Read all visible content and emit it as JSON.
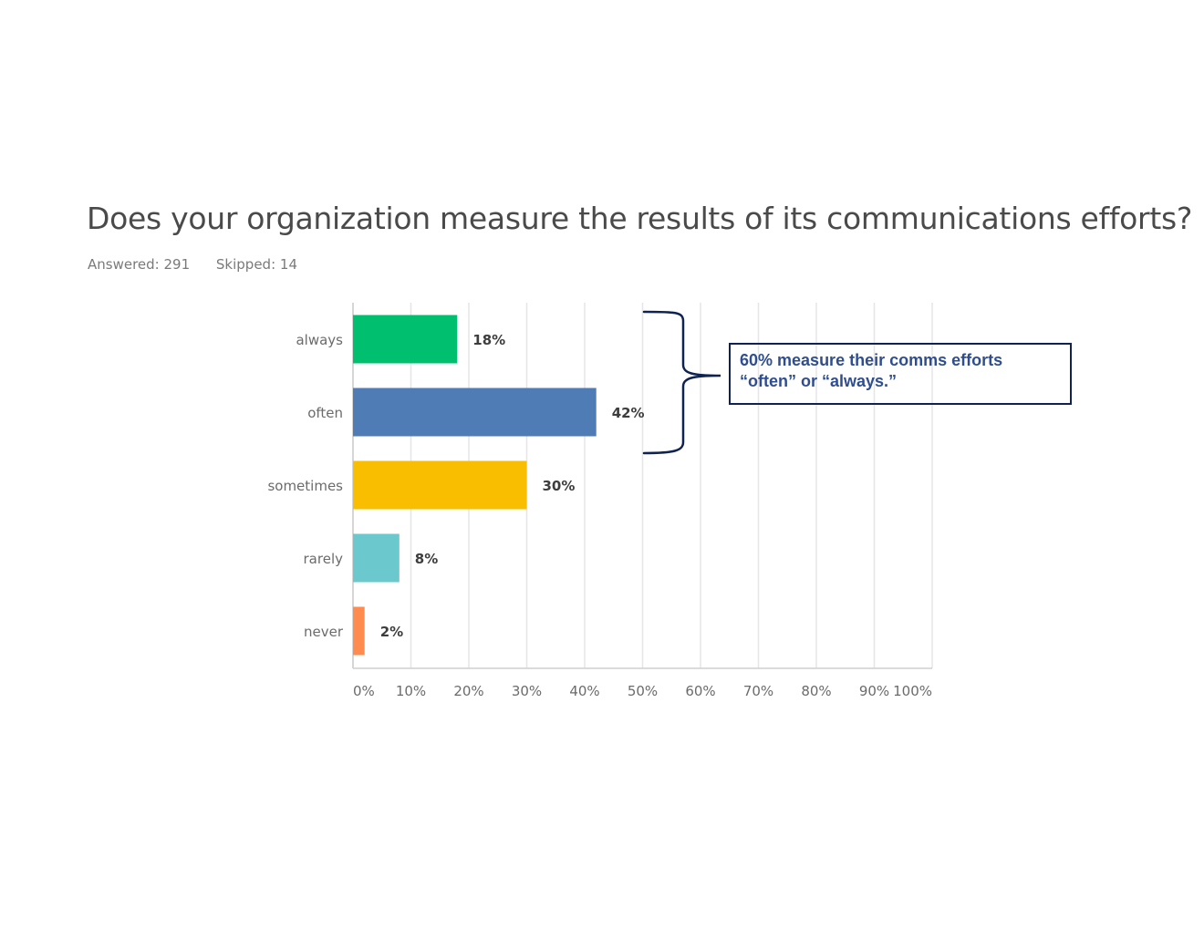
{
  "question": {
    "title": "Does your organization measure the results of its communications efforts?",
    "answered": "Answered: 291",
    "skipped": "Skipped: 14"
  },
  "callout": {
    "line1": "60% measure their comms efforts",
    "line2": "“often” or “always.”"
  },
  "chart_data": {
    "type": "bar",
    "orientation": "horizontal",
    "categories": [
      "always",
      "often",
      "sometimes",
      "rarely",
      "never"
    ],
    "values": [
      18,
      42,
      30,
      8,
      2
    ],
    "data_labels": [
      "18%",
      "42%",
      "30%",
      "8%",
      "2%"
    ],
    "colors": [
      "#00bf6f",
      "#507cb6",
      "#f9be00",
      "#6bc8cd",
      "#ff8b4f"
    ],
    "xlim": [
      0,
      100
    ],
    "xticks": [
      0,
      10,
      20,
      30,
      40,
      50,
      60,
      70,
      80,
      90,
      100
    ],
    "xtick_labels": [
      "0%",
      "10%",
      "20%",
      "30%",
      "40%",
      "50%",
      "60%",
      "70%",
      "80%",
      "90%",
      "100%"
    ],
    "grid": true,
    "legend": "none",
    "annotation": {
      "bracket_spans": [
        "always",
        "often"
      ]
    }
  }
}
